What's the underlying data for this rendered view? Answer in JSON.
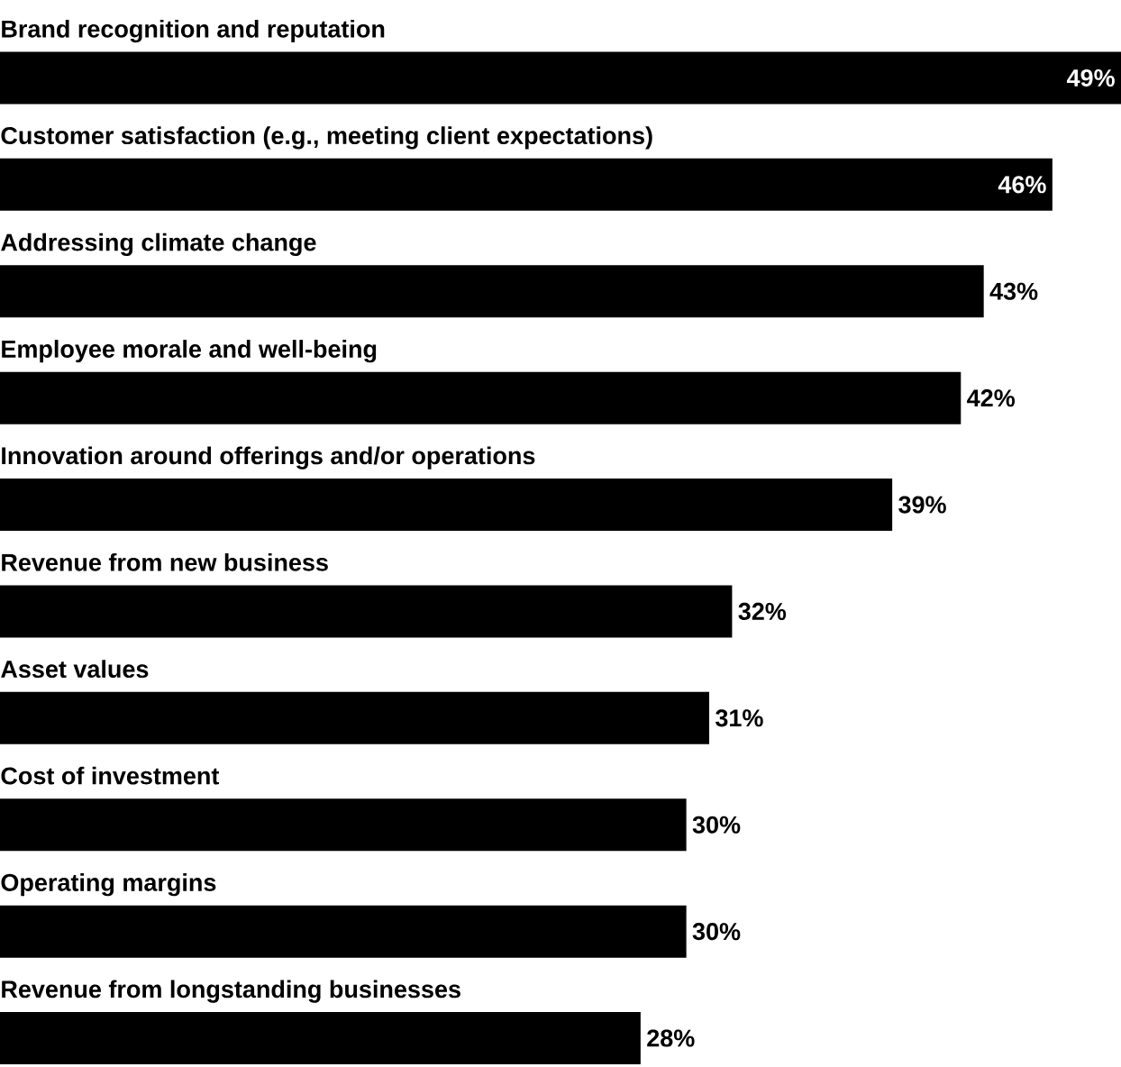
{
  "chart_data": {
    "type": "bar",
    "orientation": "horizontal",
    "categories": [
      "Brand recognition and reputation",
      "Customer satisfaction (e.g., meeting client expectations)",
      "Addressing climate change",
      "Employee morale and well-being",
      "Innovation around offerings and/or operations",
      "Revenue from new business",
      "Asset values",
      "Cost of investment",
      "Operating margins",
      "Revenue from longstanding businesses"
    ],
    "values": [
      49,
      46,
      43,
      42,
      39,
      32,
      31,
      30,
      30,
      28
    ],
    "value_labels": [
      "49%",
      "46%",
      "43%",
      "42%",
      "39%",
      "32%",
      "31%",
      "30%",
      "30%",
      "28%"
    ],
    "color": "#000000",
    "xlim": [
      0,
      49
    ],
    "tick_labels": false
  }
}
